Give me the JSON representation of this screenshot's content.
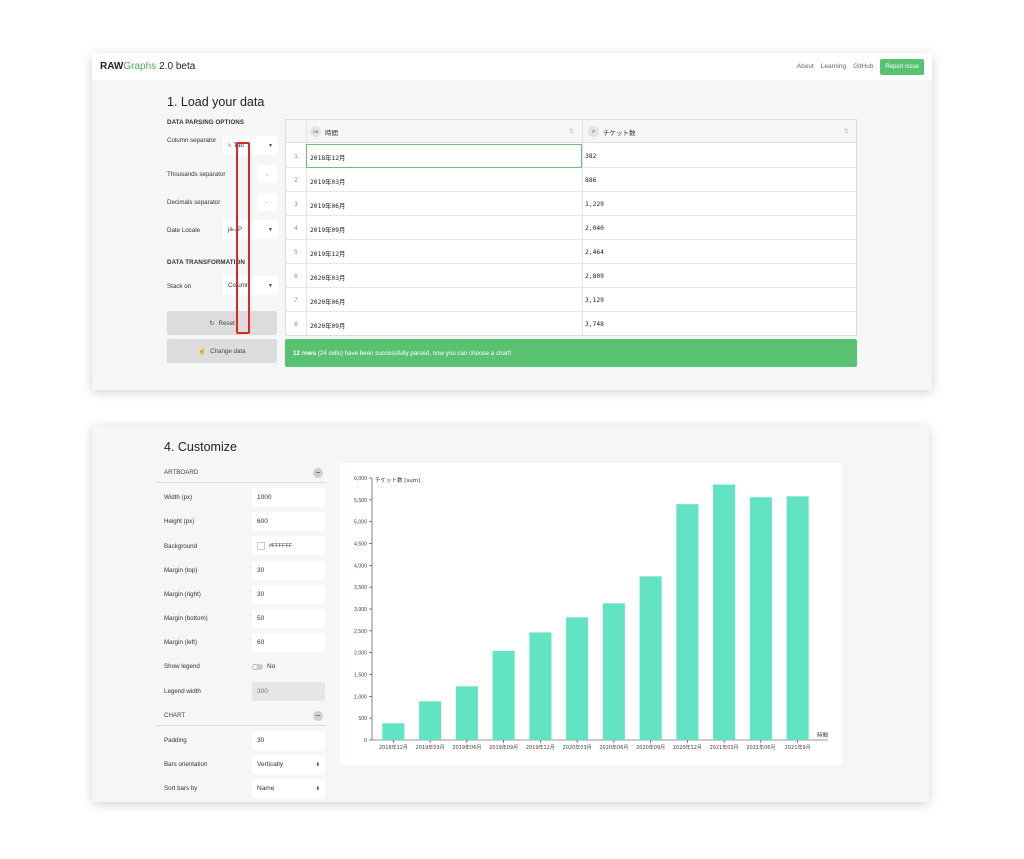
{
  "app": {
    "brand_bold": "RAW",
    "brand_green": "Graphs",
    "brand_version": "2.0 beta",
    "nav": [
      "About",
      "Learning",
      "GitHub"
    ],
    "report_label": "Report issue"
  },
  "load": {
    "title": "1. Load your data",
    "parsing_title": "DATA PARSING OPTIONS",
    "column_sep_label": "Column separator",
    "column_sep_icon": "\\t",
    "column_sep_value": "Tab",
    "thousands_label": "Thousands separator",
    "thousands_value": ",",
    "decimals_label": "Decimals separator",
    "decimals_value": ".",
    "locale_label": "Date Locale",
    "locale_value": "ja-JP",
    "transform_title": "DATA TRANSFORMATION",
    "stack_label": "Stack on",
    "stack_value": "Column",
    "reset_label": "Reset",
    "change_label": "Change data",
    "col1_type": "Aa",
    "col1_name": "時間",
    "col2_type": "#",
    "col2_name": "チケット数",
    "rows": [
      {
        "n": "1",
        "date": "2018年12月",
        "val": "382"
      },
      {
        "n": "2",
        "date": "2019年03月",
        "val": "886"
      },
      {
        "n": "3",
        "date": "2019年06月",
        "val": "1,229"
      },
      {
        "n": "4",
        "date": "2019年09月",
        "val": "2,040"
      },
      {
        "n": "5",
        "date": "2019年12月",
        "val": "2,464"
      },
      {
        "n": "6",
        "date": "2020年03月",
        "val": "2,809"
      },
      {
        "n": "7",
        "date": "2020年06月",
        "val": "3,129"
      },
      {
        "n": "8",
        "date": "2020年09月",
        "val": "3,748"
      }
    ],
    "success_bold": "12 rows",
    "success_text": "(24 cells) have been successfully parsed, now you can choose a chart!"
  },
  "customize": {
    "title": "4. Customize",
    "artboard_title": "ARTBOARD",
    "chart_title": "CHART",
    "fields": {
      "width_label": "Width (px)",
      "width_value": "1000",
      "height_label": "Height (px)",
      "height_value": "600",
      "background_label": "Background",
      "background_value": "#FFFFFF",
      "mtop_label": "Margin (top)",
      "mtop_value": "30",
      "mright_label": "Margin (right)",
      "mright_value": "30",
      "mbottom_label": "Margin (bottom)",
      "mbottom_value": "50",
      "mleft_label": "Margin (left)",
      "mleft_value": "60",
      "legend_label": "Show legend",
      "legend_value": "No",
      "legendw_label": "Legend width",
      "legendw_value": "300",
      "padding_label": "Padding",
      "padding_value": "30",
      "orient_label": "Bars orientation",
      "orient_value": "Vertically",
      "sort_label": "Sort bars by",
      "sort_value": "Name"
    }
  },
  "colors": {
    "accent": "#57c26f",
    "bar": "#62e3c3",
    "highlight": "#e0271f"
  },
  "chart_data": {
    "type": "bar",
    "ylabel": "チケット数 [sum]",
    "xlabel": "時間",
    "categories": [
      "2018年12月",
      "2019年03月",
      "2019年06月",
      "2019年09月",
      "2019年12月",
      "2020年03月",
      "2020年06月",
      "2020年09月",
      "2020年12月",
      "2021年03月",
      "2021年06月",
      "2021年9月"
    ],
    "values": [
      382,
      886,
      1229,
      2040,
      2464,
      2809,
      3129,
      3748,
      5400,
      5850,
      5560,
      5580
    ],
    "ylim": [
      0,
      6000
    ],
    "yticks": [
      "0",
      "500",
      "1,000",
      "1,500",
      "2,000",
      "2,500",
      "3,000",
      "3,500",
      "4,000",
      "4,500",
      "5,000",
      "5,500",
      "6,000"
    ]
  }
}
